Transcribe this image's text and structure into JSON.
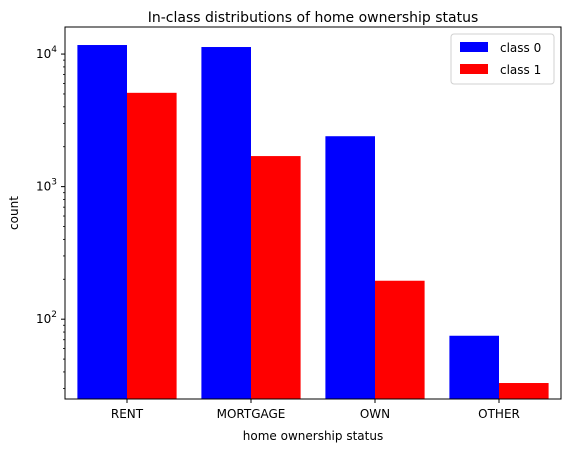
{
  "chart_data": {
    "type": "bar",
    "title": "In-class distributions of home ownership status",
    "xlabel": "home ownership status",
    "ylabel": "count",
    "yscale": "log",
    "ylim": [
      25,
      16000
    ],
    "categories": [
      "RENT",
      "MORTGAGE",
      "OWN",
      "OTHER"
    ],
    "series": [
      {
        "name": "class 0",
        "color": "#0000ff",
        "values": [
          11700,
          11300,
          2400,
          75
        ]
      },
      {
        "name": "class 1",
        "color": "#ff0000",
        "values": [
          5100,
          1700,
          195,
          33
        ]
      }
    ],
    "y_major_ticks": [
      {
        "value": 100,
        "base": "10",
        "exp": "2"
      },
      {
        "value": 1000,
        "base": "10",
        "exp": "3"
      },
      {
        "value": 10000,
        "base": "10",
        "exp": "4"
      }
    ],
    "legend_position": "top-right",
    "grid": false
  }
}
